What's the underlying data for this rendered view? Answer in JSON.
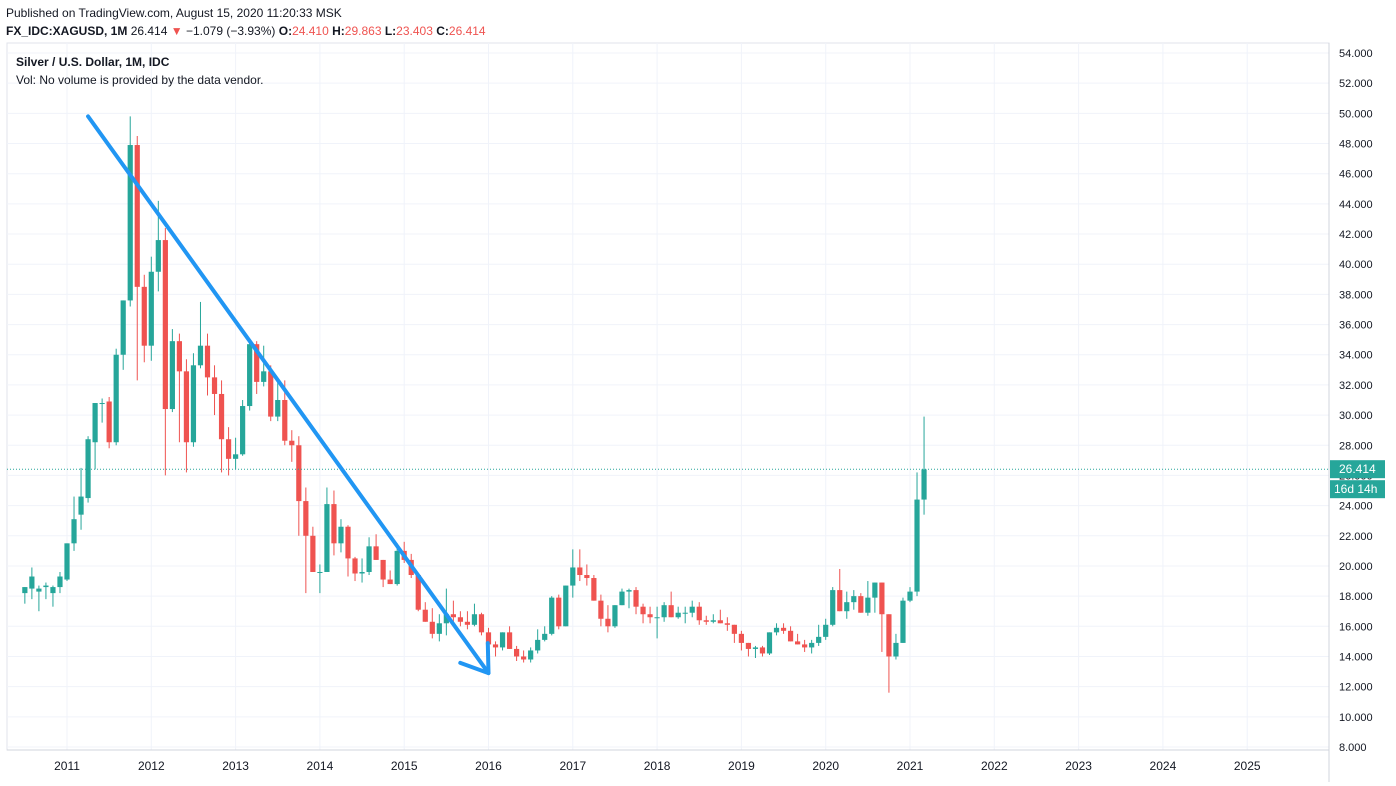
{
  "header": {
    "published": "Published on TradingView.com, August 15, 2020 11:20:33 MSK",
    "symbol": "FX_IDC:XAGUSD, 1M",
    "last": "26.414",
    "arrow": "▼",
    "change": "−1.079 (−3.93%)",
    "o_label": "O:",
    "o_value": "24.410",
    "h_label": "H:",
    "h_value": "29.863",
    "l_label": "L:",
    "l_value": "23.403",
    "c_label": "C:",
    "c_value": "26.414"
  },
  "legend": {
    "title": "Silver / U.S. Dollar, 1M, IDC",
    "volume_note": "Vol: No volume is provided by the data vendor."
  },
  "colors": {
    "up": "#26a69a",
    "down": "#ef5350",
    "trend_line": "#2196f3",
    "grid": "#f0f3fa",
    "axis_text": "#131722",
    "price_line": "#26a69a"
  },
  "chart_data": {
    "type": "candlestick",
    "title": "Silver / U.S. Dollar, 1M, IDC",
    "ylim": [
      8,
      54
    ],
    "yticks": [
      "8.000",
      "10.000",
      "12.000",
      "14.000",
      "16.000",
      "18.000",
      "20.000",
      "22.000",
      "24.000",
      "26.000",
      "28.000",
      "30.000",
      "32.000",
      "34.000",
      "36.000",
      "38.000",
      "40.000",
      "42.000",
      "44.000",
      "46.000",
      "48.000",
      "50.000",
      "52.000",
      "54.000"
    ],
    "xticks": [
      "2011",
      "2012",
      "2013",
      "2014",
      "2015",
      "2016",
      "2017",
      "2018",
      "2019",
      "2020",
      "2021",
      "2022",
      "2023",
      "2024",
      "2025"
    ],
    "grid": true,
    "last_price": {
      "value": 26.414,
      "label": "26.414",
      "countdown": "16d 14h"
    },
    "candles_start": "2010-07",
    "candles_ohlc": [
      [
        18.2,
        18.6,
        17.5,
        18.6
      ],
      [
        18.5,
        19.9,
        17.8,
        19.3
      ],
      [
        18.3,
        18.7,
        17.0,
        18.5
      ],
      [
        18.6,
        18.9,
        17.8,
        18.7
      ],
      [
        18.2,
        18.7,
        17.3,
        18.6
      ],
      [
        18.6,
        19.6,
        18.2,
        19.3
      ],
      [
        19.1,
        21.1,
        19.0,
        21.5
      ],
      [
        21.5,
        24.6,
        21.0,
        23.1
      ],
      [
        23.4,
        26.5,
        22.4,
        24.6
      ],
      [
        24.5,
        28.6,
        24.2,
        28.4
      ],
      [
        28.2,
        30.7,
        26.4,
        30.8
      ],
      [
        30.8,
        31.1,
        29.5,
        30.8
      ],
      [
        30.9,
        31.2,
        27.8,
        28.2
      ],
      [
        28.2,
        34.4,
        28.0,
        34.0
      ],
      [
        34.0,
        37.6,
        33.0,
        37.6
      ],
      [
        37.6,
        49.8,
        37.2,
        47.9
      ],
      [
        47.9,
        48.5,
        32.3,
        38.5
      ],
      [
        38.5,
        39.3,
        33.5,
        34.6
      ],
      [
        34.6,
        40.5,
        33.6,
        39.5
      ],
      [
        39.5,
        44.2,
        38.2,
        41.6
      ],
      [
        41.6,
        42.4,
        26.0,
        30.4
      ],
      [
        30.4,
        35.7,
        30.2,
        34.9
      ],
      [
        34.9,
        35.4,
        28.2,
        32.9
      ],
      [
        32.9,
        33.7,
        26.2,
        28.2
      ],
      [
        28.2,
        34.1,
        27.9,
        33.3
      ],
      [
        33.3,
        37.5,
        33.1,
        34.6
      ],
      [
        34.6,
        35.4,
        31.3,
        32.5
      ],
      [
        32.5,
        33.3,
        30.0,
        31.4
      ],
      [
        31.4,
        32.3,
        26.2,
        28.4
      ],
      [
        28.4,
        29.2,
        26.0,
        27.1
      ],
      [
        27.1,
        28.5,
        26.4,
        27.4
      ],
      [
        27.4,
        31.0,
        27.3,
        30.6
      ],
      [
        30.6,
        35.0,
        30.3,
        34.7
      ],
      [
        34.7,
        34.9,
        31.4,
        32.2
      ],
      [
        32.2,
        34.6,
        31.9,
        32.9
      ],
      [
        32.9,
        33.3,
        29.6,
        29.9
      ],
      [
        29.9,
        32.3,
        29.6,
        31.0
      ],
      [
        31.0,
        32.3,
        28.0,
        28.3
      ],
      [
        28.3,
        29.0,
        26.9,
        28.0
      ],
      [
        28.0,
        28.6,
        22.0,
        24.3
      ],
      [
        24.3,
        25.2,
        18.2,
        22.0
      ],
      [
        22.0,
        22.6,
        19.8,
        19.6
      ],
      [
        19.6,
        20.1,
        18.2,
        19.6
      ],
      [
        19.6,
        25.2,
        19.6,
        24.1
      ],
      [
        24.1,
        25.0,
        20.7,
        21.5
      ],
      [
        21.5,
        23.1,
        20.9,
        22.6
      ],
      [
        22.6,
        22.7,
        19.3,
        20.5
      ],
      [
        20.5,
        20.6,
        19.0,
        19.5
      ],
      [
        19.5,
        20.5,
        18.9,
        19.6
      ],
      [
        19.6,
        21.9,
        19.4,
        21.3
      ],
      [
        21.3,
        22.1,
        20.6,
        20.4
      ],
      [
        20.4,
        20.3,
        18.6,
        19.1
      ],
      [
        19.1,
        19.7,
        18.8,
        18.8
      ],
      [
        18.8,
        21.5,
        18.7,
        21.0
      ],
      [
        21.0,
        21.6,
        20.2,
        20.4
      ],
      [
        20.4,
        20.8,
        19.2,
        19.4
      ],
      [
        19.4,
        19.4,
        17.0,
        17.1
      ],
      [
        17.1,
        17.6,
        16.9,
        16.3
      ],
      [
        16.3,
        17.2,
        15.2,
        15.5
      ],
      [
        15.5,
        16.8,
        15.0,
        16.2
      ],
      [
        16.2,
        18.5,
        15.4,
        16.8
      ],
      [
        16.8,
        17.7,
        16.0,
        16.6
      ],
      [
        16.6,
        17.0,
        16.0,
        16.3
      ],
      [
        16.3,
        17.0,
        15.8,
        16.1
      ],
      [
        16.1,
        17.5,
        16.0,
        16.8
      ],
      [
        16.8,
        16.9,
        15.4,
        15.6
      ],
      [
        15.6,
        15.9,
        14.4,
        14.8
      ],
      [
        14.8,
        15.0,
        14.0,
        14.6
      ],
      [
        14.6,
        15.6,
        14.4,
        15.6
      ],
      [
        15.6,
        16.0,
        14.6,
        14.5
      ],
      [
        14.5,
        14.7,
        13.7,
        14.0
      ],
      [
        14.0,
        14.4,
        13.6,
        13.8
      ],
      [
        13.8,
        14.6,
        13.6,
        14.4
      ],
      [
        14.4,
        15.8,
        14.2,
        15.1
      ],
      [
        15.1,
        16.0,
        15.0,
        15.5
      ],
      [
        15.5,
        18.0,
        15.4,
        17.9
      ],
      [
        17.9,
        18.1,
        15.8,
        16.0
      ],
      [
        16.0,
        18.4,
        16.0,
        18.7
      ],
      [
        18.7,
        21.1,
        17.9,
        19.9
      ],
      [
        19.9,
        21.1,
        19.0,
        19.4
      ],
      [
        19.4,
        20.1,
        18.7,
        19.2
      ],
      [
        19.2,
        19.4,
        17.7,
        17.7
      ],
      [
        17.7,
        18.1,
        16.0,
        16.5
      ],
      [
        16.5,
        17.4,
        15.6,
        16.0
      ],
      [
        16.0,
        17.3,
        15.9,
        17.4
      ],
      [
        17.4,
        18.5,
        17.4,
        18.3
      ],
      [
        18.3,
        18.5,
        17.2,
        18.4
      ],
      [
        18.4,
        18.6,
        16.8,
        17.3
      ],
      [
        17.3,
        17.5,
        16.2,
        16.8
      ],
      [
        16.8,
        17.3,
        16.2,
        16.6
      ],
      [
        16.6,
        17.3,
        15.2,
        16.6
      ],
      [
        16.6,
        17.6,
        16.3,
        17.4
      ],
      [
        17.4,
        18.3,
        16.7,
        16.6
      ],
      [
        16.6,
        17.3,
        16.5,
        16.9
      ],
      [
        16.9,
        17.3,
        16.2,
        16.9
      ],
      [
        16.9,
        17.7,
        16.6,
        17.3
      ],
      [
        17.3,
        17.6,
        16.1,
        16.4
      ],
      [
        16.4,
        16.7,
        16.1,
        16.3
      ],
      [
        16.3,
        16.8,
        16.2,
        16.4
      ],
      [
        16.4,
        17.1,
        16.2,
        16.2
      ],
      [
        16.2,
        16.6,
        15.7,
        16.1
      ],
      [
        16.1,
        16.1,
        14.9,
        15.5
      ],
      [
        15.5,
        15.7,
        14.4,
        14.9
      ],
      [
        14.9,
        14.8,
        14.0,
        14.5
      ],
      [
        14.5,
        14.7,
        13.9,
        14.6
      ],
      [
        14.6,
        14.7,
        14.0,
        14.2
      ],
      [
        14.2,
        15.6,
        14.1,
        15.6
      ],
      [
        15.6,
        16.2,
        15.4,
        15.9
      ],
      [
        15.9,
        16.2,
        15.5,
        15.7
      ],
      [
        15.7,
        16.0,
        15.0,
        15.0
      ],
      [
        15.0,
        15.5,
        14.8,
        14.8
      ],
      [
        14.8,
        15.1,
        14.3,
        14.6
      ],
      [
        14.6,
        15.1,
        14.2,
        14.9
      ],
      [
        14.9,
        16.1,
        14.7,
        15.3
      ],
      [
        15.3,
        16.5,
        15.1,
        16.1
      ],
      [
        16.1,
        18.6,
        16.0,
        18.4
      ],
      [
        18.4,
        19.8,
        17.0,
        17.0
      ],
      [
        17.0,
        18.3,
        16.5,
        17.6
      ],
      [
        17.6,
        18.4,
        17.1,
        18.0
      ],
      [
        18.0,
        18.2,
        17.0,
        16.9
      ],
      [
        16.9,
        19.0,
        16.7,
        17.9
      ],
      [
        17.9,
        18.9,
        16.9,
        18.9
      ],
      [
        18.9,
        18.9,
        14.3,
        16.8
      ],
      [
        16.8,
        15.6,
        11.6,
        14.0
      ],
      [
        14.0,
        15.5,
        13.8,
        14.9
      ],
      [
        14.9,
        17.9,
        14.9,
        17.7
      ],
      [
        17.7,
        18.6,
        17.6,
        18.3
      ],
      [
        18.3,
        26.2,
        18.0,
        24.4
      ],
      [
        24.4,
        29.9,
        23.4,
        26.4
      ]
    ],
    "trend_arrow": {
      "from": [
        "2011-04",
        49.8
      ],
      "to": [
        "2016-01",
        12.9
      ]
    }
  }
}
